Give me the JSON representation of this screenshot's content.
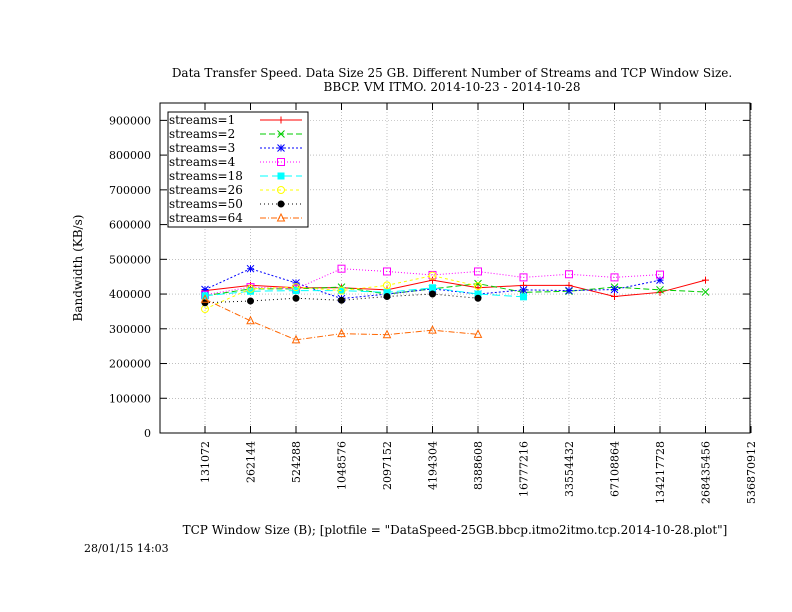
{
  "chart_data": {
    "type": "line",
    "title": [
      "Data Transfer Speed. Data Size 25 GB. Different Number of Streams and TCP Window Size.",
      "BBCP. VM ITMO. 2014-10-23 - 2014-10-28"
    ],
    "xlabel": "TCP Window Size (B); [plotfile = \"DataSpeed-25GB.bbcp.itmo2itmo.tcp.2014-10-28.plot\"]",
    "ylabel": "Bandwidth (KB/s)",
    "categories": [
      "131072",
      "262144",
      "524288",
      "1048576",
      "2097152",
      "4194304",
      "8388608",
      "16777216",
      "33554432",
      "67108864",
      "134217728",
      "268435456",
      "536870912"
    ],
    "ylim": [
      0,
      950000
    ],
    "yticks": [
      0,
      100000,
      200000,
      300000,
      400000,
      500000,
      600000,
      700000,
      800000,
      900000
    ],
    "grid": true,
    "legend_position": "top-left",
    "series": [
      {
        "name": "streams=1",
        "color": "#ff0000",
        "dash": "",
        "marker": "plus",
        "values": [
          410000,
          425000,
          418000,
          418000,
          412000,
          440000,
          418000,
          425000,
          425000,
          393000,
          405000,
          440000,
          null
        ]
      },
      {
        "name": "streams=2",
        "color": "#00cc00",
        "dash": "6,3",
        "marker": "x",
        "values": [
          395000,
          415000,
          415000,
          420000,
          400000,
          415000,
          430000,
          405000,
          408000,
          420000,
          412000,
          406000,
          null
        ]
      },
      {
        "name": "streams=3",
        "color": "#0000ff",
        "dash": "2,2",
        "marker": "star",
        "values": [
          413000,
          473000,
          432000,
          387000,
          400000,
          415000,
          400000,
          412000,
          410000,
          413000,
          440000,
          null,
          null
        ]
      },
      {
        "name": "streams=4",
        "color": "#ff00ff",
        "dash": "1,2",
        "marker": "square",
        "values": [
          398000,
          420000,
          415000,
          473000,
          465000,
          455000,
          465000,
          448000,
          457000,
          448000,
          456000,
          null,
          null
        ]
      },
      {
        "name": "streams=18",
        "color": "#00ffff",
        "dash": "8,4",
        "marker": "filled-square",
        "values": [
          395000,
          408000,
          410000,
          410000,
          405000,
          418000,
          400000,
          392000,
          null,
          null,
          null,
          null,
          null
        ]
      },
      {
        "name": "streams=26",
        "color": "#ffff00",
        "dash": "3,3",
        "marker": "circle",
        "values": [
          357000,
          415000,
          420000,
          410000,
          425000,
          453000,
          423000,
          null,
          null,
          null,
          null,
          null,
          null
        ]
      },
      {
        "name": "streams=50",
        "color": "#000000",
        "dash": "1,3",
        "marker": "filled-circle",
        "values": [
          375000,
          380000,
          388000,
          382000,
          393000,
          400000,
          388000,
          null,
          null,
          null,
          null,
          null,
          null
        ]
      },
      {
        "name": "streams=64",
        "color": "#ff6600",
        "dash": "6,2,1,2",
        "marker": "triangle",
        "values": [
          385000,
          323000,
          268000,
          286000,
          283000,
          296000,
          284000,
          null,
          null,
          null,
          null,
          null,
          null
        ]
      }
    ]
  },
  "footer": {
    "timestamp": "28/01/15 14:03"
  }
}
